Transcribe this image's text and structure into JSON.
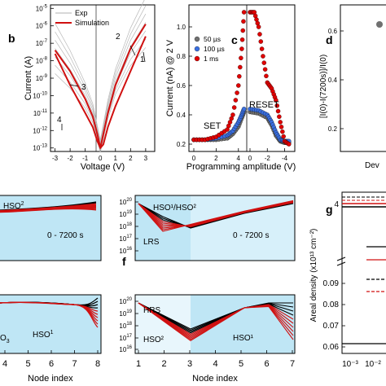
{
  "panels": {
    "b": {
      "letter": "b",
      "legend": [
        "Exp",
        "Simulation"
      ],
      "xlabel": "Voltage (V)",
      "ylabel": "Current (A)",
      "xticks": [
        "-3",
        "-2",
        "-1",
        "0",
        "1",
        "2",
        "3"
      ],
      "yexp": [
        "-5",
        "-6",
        "-7",
        "-8",
        "-9",
        "-10",
        "-11",
        "-12",
        "-13"
      ],
      "ytop": "-7",
      "annotations": [
        "1",
        "2",
        "3",
        "4"
      ]
    },
    "c": {
      "letter": "c",
      "legend": [
        "50 µs",
        "100 µs",
        "1 ms"
      ],
      "colors": [
        "#707070",
        "#3a6fe0",
        "#e00000"
      ],
      "xlabel": "Programming amplitude (V)",
      "ylabel": "Current (nA) @ 2 V",
      "xticks": [
        "0",
        "2",
        "4",
        "0",
        "-2",
        "-4"
      ],
      "yticks": [
        "0.2",
        "0.4",
        "0.6",
        "0.8",
        "1.0"
      ],
      "annotations": [
        "SET",
        "RESET"
      ]
    },
    "d": {
      "letter": "d",
      "ylabel": "[I(0)-I(7200s)]/I(0)",
      "yticks": [
        "0.6",
        "0.4",
        "0.2"
      ],
      "xlabel_partial": "Dev"
    },
    "e": {
      "xticks": [
        "4",
        "5",
        "6",
        "7",
        "8"
      ],
      "xlabel": "Node index",
      "labels_top": [
        "HSO",
        "2"
      ],
      "time_label": "0 - 7200 s",
      "labels_bottom": [
        "HSO",
        "1"
      ],
      "partial_label": "O",
      "partial_sub": "3"
    },
    "f": {
      "letter": "f",
      "xticks": [
        "1",
        "2",
        "3",
        "4",
        "5",
        "6",
        "7"
      ],
      "xlabel": "Node index",
      "yexp": [
        "20",
        "19",
        "18",
        "17",
        "16"
      ],
      "top_label": "HSO¹/HSO²",
      "lrs": "LRS",
      "time_label": "0 - 7200 s",
      "hrs": "HRS",
      "hso2": "HSO²",
      "hso1": "HSO¹"
    },
    "g": {
      "letter": "g",
      "ylabel": "Areal density (x10¹³ cm⁻²)",
      "yticks_top": [
        "4"
      ],
      "yticks_bottom": [
        "0.09",
        "0.08",
        "0.07",
        "0.06"
      ],
      "xticks": [
        "10⁻³",
        "10⁻²"
      ]
    }
  },
  "chart_data": [
    {
      "type": "line",
      "panel": "b",
      "xlabel": "Voltage (V)",
      "ylabel": "Current (A)",
      "xlim": [
        -3,
        3.6
      ],
      "ylim_log10": [
        -13,
        -5
      ],
      "series": [
        {
          "name": "Simulation",
          "x": [
            -3,
            -2,
            -1,
            -0.5,
            -0.2,
            0,
            0.2,
            0.5,
            1,
            2,
            3
          ],
          "y": [
            -7.4,
            -8.6,
            -10.2,
            -11.2,
            -12.2,
            -13,
            -12.2,
            -11.0,
            -9.4,
            -7.3,
            -5.9
          ]
        },
        {
          "name": "Simulation",
          "x": [
            -3,
            -2,
            -1,
            -0.5,
            -0.2,
            0,
            0.2,
            0.5,
            1,
            2,
            3
          ],
          "y": [
            -7.6,
            -9.4,
            -11.0,
            -11.8,
            -12.6,
            -13,
            -12.8,
            -11.8,
            -10.6,
            -8.6,
            -6.6
          ]
        },
        {
          "name": "Exp",
          "x": [
            -3,
            -2,
            -1,
            -0.5,
            0,
            0.5,
            1,
            2,
            3
          ],
          "y": [
            -7.3,
            -8.5,
            -10.0,
            -11.0,
            -12.9,
            -10.8,
            -9.2,
            -7.2,
            -5.8
          ]
        }
      ]
    },
    {
      "type": "scatter",
      "panel": "c",
      "xlabel": "Programming amplitude (V)",
      "ylabel": "Current (nA) @ 2 V",
      "ylim": [
        0.15,
        1.15
      ],
      "series": [
        {
          "name": "50 µs",
          "set_x": [
            0,
            1,
            2,
            3,
            3.5,
            4,
            4.3,
            4.5
          ],
          "set_y": [
            0.23,
            0.23,
            0.23,
            0.24,
            0.27,
            0.32,
            0.38,
            0.42
          ],
          "reset_x": [
            0,
            -1,
            -2,
            -2.5,
            -3,
            -3.5,
            -4,
            -4.5
          ],
          "reset_y": [
            0.42,
            0.41,
            0.38,
            0.33,
            0.26,
            0.22,
            0.21,
            0.21
          ]
        },
        {
          "name": "100 µs",
          "set_x": [
            0,
            1,
            2,
            3,
            3.5,
            4,
            4.3,
            4.5
          ],
          "set_y": [
            0.23,
            0.23,
            0.24,
            0.26,
            0.29,
            0.35,
            0.4,
            0.44
          ],
          "reset_x": [
            0,
            -1,
            -2,
            -2.5,
            -3,
            -3.5,
            -4,
            -4.5
          ],
          "reset_y": [
            0.44,
            0.43,
            0.4,
            0.35,
            0.28,
            0.23,
            0.22,
            0.22
          ]
        },
        {
          "name": "1 ms",
          "set_x": [
            0,
            1,
            2,
            3,
            3.5,
            4,
            4.3,
            4.5
          ],
          "set_y": [
            0.23,
            0.23,
            0.25,
            0.3,
            0.4,
            0.6,
            0.85,
            1.1
          ],
          "reset_x": [
            0,
            -0.5,
            -1,
            -1.5,
            -2,
            -2.5,
            -3,
            -3.5,
            -4,
            -4.5
          ],
          "reset_y": [
            1.1,
            1.1,
            1.0,
            0.8,
            0.62,
            0.58,
            0.5,
            0.35,
            0.22,
            0.2
          ]
        }
      ]
    }
  ]
}
